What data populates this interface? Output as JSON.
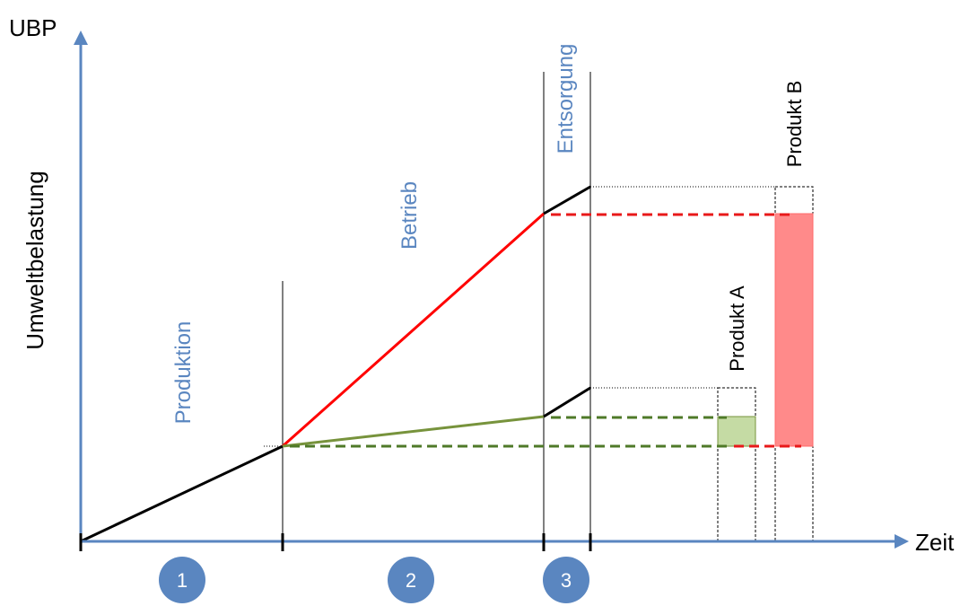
{
  "axes": {
    "y_unit": "UBP",
    "y_label": "Umweltbelastung",
    "x_label": "Zeit"
  },
  "phases": [
    {
      "name": "Produktion",
      "number": "1"
    },
    {
      "name": "Betrieb",
      "number": "2"
    },
    {
      "name": "Entsorgung",
      "number": "3"
    }
  ],
  "products": [
    {
      "name": "Produkt A",
      "color": "#c5dba4"
    },
    {
      "name": "Produkt B",
      "color": "#ff8a8a"
    }
  ],
  "colors": {
    "axis": "#5a86c0",
    "line_production": "#000000",
    "line_operation_a": "#77933c",
    "line_operation_b": "#ff0000",
    "dashed_green": "#4f7a28",
    "dashed_red": "#e8191a",
    "phase_text": "#5a86c0",
    "circle_fill": "#5a86c0"
  }
}
